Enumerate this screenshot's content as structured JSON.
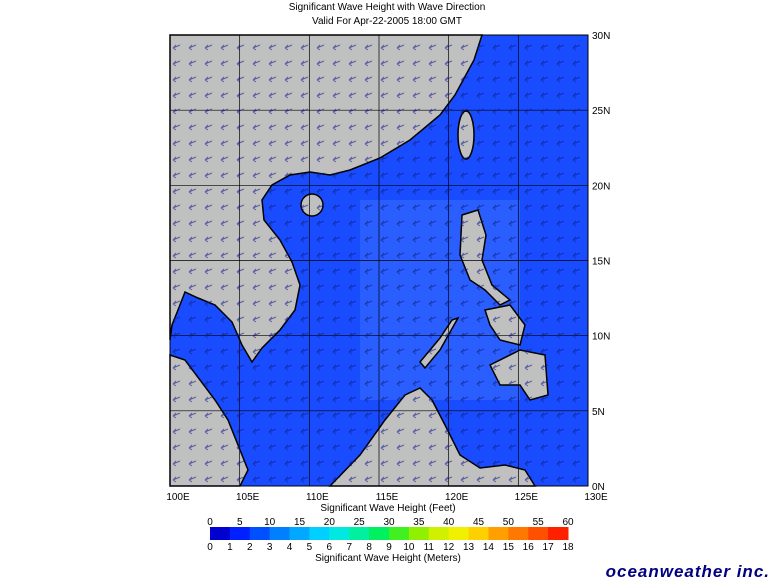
{
  "title": "Significant Wave Height with Wave Direction",
  "subtitle": "Valid For Apr-22-2005 18:00 GMT",
  "map": {
    "xlim": [
      100,
      130
    ],
    "ylim": [
      0,
      30
    ],
    "xticks": [
      {
        "value": 100,
        "label": "100E"
      },
      {
        "value": 105,
        "label": "105E"
      },
      {
        "value": 110,
        "label": "110E"
      },
      {
        "value": 115,
        "label": "115E"
      },
      {
        "value": 120,
        "label": "120E"
      },
      {
        "value": 125,
        "label": "125E"
      },
      {
        "value": 130,
        "label": "130E"
      }
    ],
    "yticks": [
      {
        "value": 0,
        "label": "0N"
      },
      {
        "value": 5,
        "label": "5N"
      },
      {
        "value": 10,
        "label": "10N"
      },
      {
        "value": 15,
        "label": "15N"
      },
      {
        "value": 20,
        "label": "20N"
      },
      {
        "value": 25,
        "label": "25N"
      },
      {
        "value": 30,
        "label": "30N"
      }
    ]
  },
  "colorbar": {
    "feet_title": "Significant Wave Height (Feet)",
    "feet_ticks": [
      0,
      5,
      10,
      15,
      20,
      25,
      30,
      35,
      40,
      45,
      50,
      55,
      60
    ],
    "meters_title": "Significant Wave Height (Meters)",
    "meters_ticks": [
      0,
      1,
      2,
      3,
      4,
      5,
      6,
      7,
      8,
      9,
      10,
      11,
      12,
      13,
      14,
      15,
      16,
      17,
      18
    ],
    "colors": [
      "#0000d0",
      "#0020ff",
      "#0050ff",
      "#0080ff",
      "#00a8ff",
      "#00d0ff",
      "#00e8e0",
      "#00f0a0",
      "#00f060",
      "#40f020",
      "#90f000",
      "#d0f000",
      "#f0f000",
      "#ffd000",
      "#ffa000",
      "#ff7800",
      "#ff5000",
      "#ff2000"
    ]
  },
  "logo": "oceanweather inc."
}
